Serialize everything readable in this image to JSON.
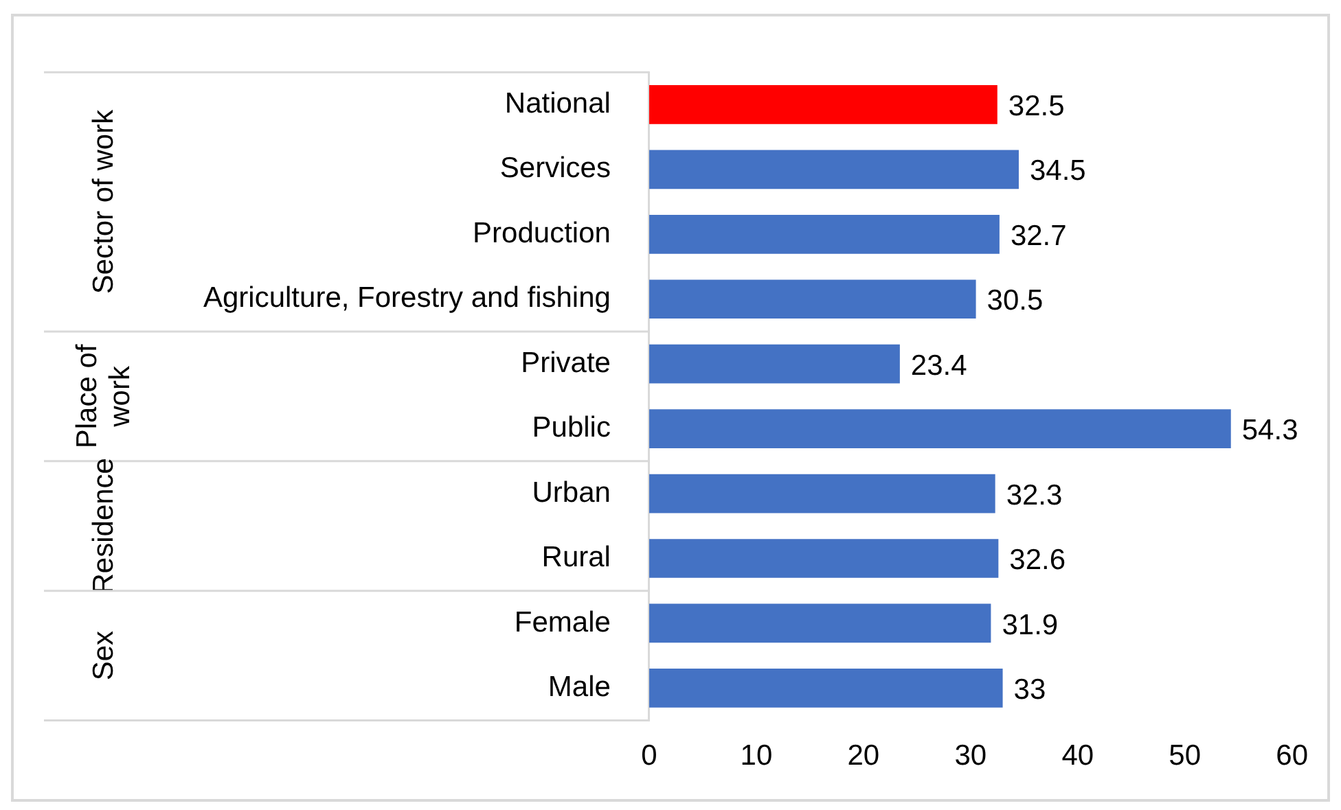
{
  "chart_data": {
    "type": "bar",
    "orientation": "horizontal",
    "categories": [
      "National",
      "Services",
      "Production",
      "Agriculture, Forestry and fishing",
      "Private",
      "Public",
      "Urban",
      "Rural",
      "Female",
      "Male"
    ],
    "values": [
      32.5,
      34.5,
      32.7,
      30.5,
      23.4,
      54.3,
      32.3,
      32.6,
      31.9,
      33
    ],
    "colors": [
      "#ff0000",
      "#4472c4",
      "#4472c4",
      "#4472c4",
      "#4472c4",
      "#4472c4",
      "#4472c4",
      "#4472c4",
      "#4472c4",
      "#4472c4"
    ],
    "xlim": [
      0,
      60
    ],
    "xticks": [
      0,
      10,
      20,
      30,
      40,
      50,
      60
    ],
    "annotations": [
      "Sector of work",
      "Place of work",
      "Residence",
      "Sex"
    ],
    "data_labels": true,
    "grid": false,
    "legend": false
  }
}
